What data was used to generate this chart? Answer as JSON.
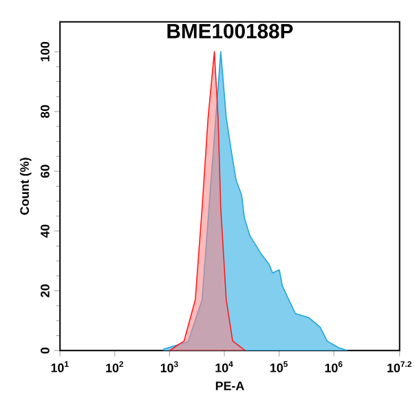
{
  "chart_data": {
    "type": "area",
    "title": "BME100188P",
    "xlabel": "PE-A",
    "ylabel": "Count (%)",
    "log": "x",
    "xlim": [
      10,
      15848932
    ],
    "ylim": [
      0,
      110
    ],
    "xticks": [
      {
        "value": 10,
        "label": "10$^{1}$"
      },
      {
        "value": 100,
        "label": "10$^{2}$"
      },
      {
        "value": 1000,
        "label": "10$^{3}$"
      },
      {
        "value": 10000,
        "label": "10$^{4}$"
      },
      {
        "value": 100000,
        "label": "10$^{5}$"
      },
      {
        "value": 1000000,
        "label": "10$^{6}$"
      },
      {
        "value": 15848932,
        "label": "10$^{7.2}$"
      }
    ],
    "yticks": [
      0,
      20,
      40,
      60,
      80,
      100
    ],
    "series": [
      {
        "color": "#1ba6e0",
        "x": [
          780,
          2180,
          3930,
          5240,
          8610,
          10840,
          13620,
          16450,
          20700,
          23200,
          29200,
          47200,
          65000,
          76000,
          101000,
          115000,
          198000,
          351000,
          564000,
          751000,
          1210000,
          1770000
        ],
        "values": [
          0.5,
          3,
          17,
          47.7,
          100,
          78,
          66,
          57,
          52,
          44.5,
          38.5,
          32.3,
          29,
          26,
          27,
          21.6,
          12.4,
          11,
          7.8,
          3.2,
          1,
          0
        ]
      },
      {
        "color": "#ff1a1a",
        "x": [
          1000,
          1840,
          2950,
          3930,
          5060,
          6580,
          7690,
          8610,
          10840,
          14190,
          24150
        ],
        "values": [
          0,
          3.2,
          17,
          47.7,
          78,
          100,
          78,
          47.7,
          17,
          3.2,
          0
        ]
      }
    ]
  }
}
